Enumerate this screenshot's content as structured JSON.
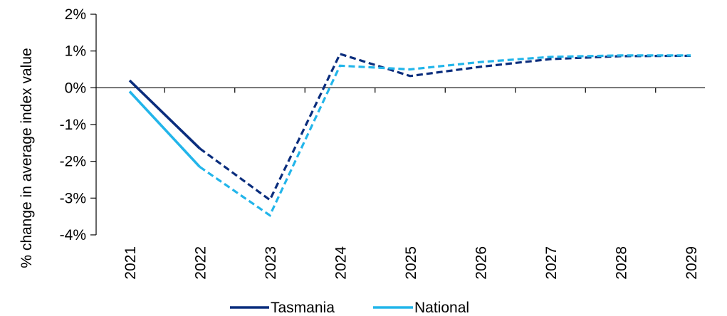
{
  "chart_data": {
    "type": "line",
    "title": "",
    "xlabel": "",
    "ylabel": "% change in average index value",
    "categories": [
      "2021",
      "2022",
      "2023",
      "2024",
      "2025",
      "2026",
      "2027",
      "2028",
      "2029"
    ],
    "ylim": [
      -4,
      2
    ],
    "yticks": [
      2,
      1,
      0,
      -1,
      -2,
      -3,
      -4
    ],
    "ytick_labels": [
      "2%",
      "1%",
      "0%",
      "-1%",
      "-2%",
      "-3%",
      "-4%"
    ],
    "grid": false,
    "legend_position": "bottom",
    "series": [
      {
        "name": "Tasmania",
        "color": "#0a2d7d",
        "values": [
          0.2,
          -1.65,
          -3.05,
          0.92,
          0.32,
          0.57,
          0.78,
          0.86,
          0.87
        ],
        "solid_until_index": 1
      },
      {
        "name": "National",
        "color": "#22b5ea",
        "values": [
          -0.1,
          -2.15,
          -3.47,
          0.6,
          0.5,
          0.7,
          0.84,
          0.88,
          0.88
        ],
        "solid_until_index": 1
      }
    ]
  }
}
